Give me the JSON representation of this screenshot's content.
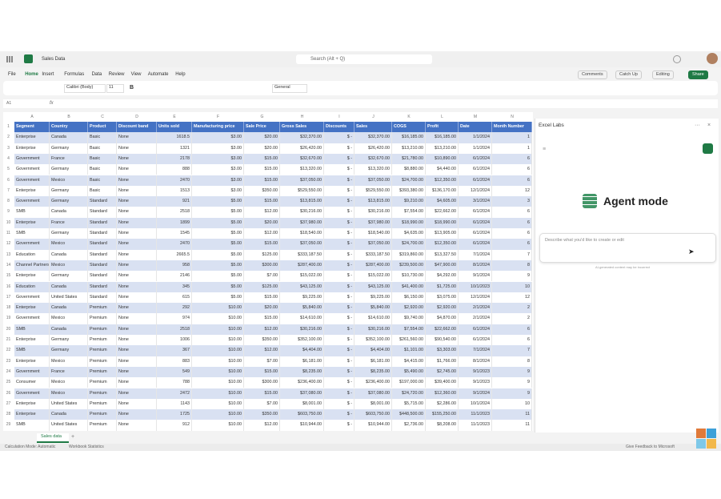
{
  "app": {
    "file_title": "Sales Data",
    "search": "Search (Alt + Q)",
    "menu": [
      "File",
      "Home",
      "Insert",
      "Formulas",
      "Data",
      "Review",
      "View",
      "Automate",
      "Help"
    ],
    "actions": [
      "Comments",
      "Catch Up",
      "Editing",
      "Share"
    ],
    "font_name": "Calibri (Body)",
    "font_size": "11",
    "number_format": "General",
    "name_box": "A1"
  },
  "sheet": {
    "column_letters": [
      "A",
      "B",
      "C",
      "D",
      "E",
      "F",
      "G",
      "H",
      "I",
      "J",
      "K",
      "L",
      "M",
      "N"
    ],
    "row_numbers": [
      1,
      2,
      3,
      4,
      5,
      6,
      7,
      8,
      9,
      10,
      11,
      12,
      13,
      14,
      15,
      16,
      17,
      18,
      19,
      20,
      21,
      22,
      23,
      24,
      25,
      26,
      27,
      28,
      29
    ],
    "headers": [
      "Segment",
      "Country",
      "Product",
      "Discount band",
      "Units sold",
      "Manufacturing price",
      "Sale Price",
      "Gross Sales",
      "Discounts",
      "Sales",
      "COGS",
      "Profit",
      "Date",
      "Month Number"
    ],
    "rows": [
      [
        "Enterprise",
        "Canada",
        "Basic",
        "None",
        "1618.5",
        "$3.00",
        "$20.00",
        "$32,370.00",
        "$ -",
        "$32,370.00",
        "$16,185.00",
        "$16,185.00",
        "1/1/2024",
        "1"
      ],
      [
        "Enterprise",
        "Germany",
        "Basic",
        "None",
        "1321",
        "$3.00",
        "$20.00",
        "$26,420.00",
        "$ -",
        "$26,420.00",
        "$13,210.00",
        "$13,210.00",
        "1/1/2024",
        "1"
      ],
      [
        "Government",
        "France",
        "Basic",
        "None",
        "2178",
        "$3.00",
        "$15.00",
        "$32,670.00",
        "$ -",
        "$32,670.00",
        "$21,780.00",
        "$10,890.00",
        "6/1/2024",
        "6"
      ],
      [
        "Government",
        "Germany",
        "Basic",
        "None",
        "888",
        "$3.00",
        "$15.00",
        "$13,320.00",
        "$ -",
        "$13,320.00",
        "$8,880.00",
        "$4,440.00",
        "6/1/2024",
        "6"
      ],
      [
        "Government",
        "Mexico",
        "Basic",
        "None",
        "2470",
        "$3.00",
        "$15.00",
        "$37,050.00",
        "$ -",
        "$37,050.00",
        "$24,700.00",
        "$12,350.00",
        "6/1/2024",
        "6"
      ],
      [
        "Enterprise",
        "Germany",
        "Basic",
        "None",
        "1513",
        "$3.00",
        "$350.00",
        "$529,550.00",
        "$ -",
        "$529,550.00",
        "$393,380.00",
        "$136,170.00",
        "12/1/2024",
        "12"
      ],
      [
        "Government",
        "Germany",
        "Standard",
        "None",
        "921",
        "$5.00",
        "$15.00",
        "$13,815.00",
        "$ -",
        "$13,815.00",
        "$9,210.00",
        "$4,605.00",
        "3/1/2024",
        "3"
      ],
      [
        "SMB",
        "Canada",
        "Standard",
        "None",
        "2518",
        "$5.00",
        "$12.00",
        "$30,216.00",
        "$ -",
        "$30,216.00",
        "$7,554.00",
        "$22,662.00",
        "6/1/2024",
        "6"
      ],
      [
        "Enterprise",
        "France",
        "Standard",
        "None",
        "1899",
        "$5.00",
        "$20.00",
        "$37,980.00",
        "$ -",
        "$37,980.00",
        "$18,990.00",
        "$18,990.00",
        "6/1/2024",
        "6"
      ],
      [
        "SMB",
        "Germany",
        "Standard",
        "None",
        "1545",
        "$5.00",
        "$12.00",
        "$18,540.00",
        "$ -",
        "$18,540.00",
        "$4,635.00",
        "$13,905.00",
        "6/1/2024",
        "6"
      ],
      [
        "Government",
        "Mexico",
        "Standard",
        "None",
        "2470",
        "$5.00",
        "$15.00",
        "$37,050.00",
        "$ -",
        "$37,050.00",
        "$24,700.00",
        "$12,350.00",
        "6/1/2024",
        "6"
      ],
      [
        "Education",
        "Canada",
        "Standard",
        "None",
        "2665.5",
        "$5.00",
        "$125.00",
        "$333,187.50",
        "$ -",
        "$333,187.50",
        "$319,860.00",
        "$13,327.50",
        "7/1/2024",
        "7"
      ],
      [
        "Channel Partners",
        "Mexico",
        "Standard",
        "None",
        "958",
        "$5.00",
        "$300.00",
        "$287,400.00",
        "$ -",
        "$287,400.00",
        "$239,500.00",
        "$47,900.00",
        "8/1/2024",
        "8"
      ],
      [
        "Enterprise",
        "Germany",
        "Standard",
        "None",
        "2146",
        "$5.00",
        "$7.00",
        "$15,022.00",
        "$ -",
        "$15,022.00",
        "$10,730.00",
        "$4,292.00",
        "9/1/2024",
        "9"
      ],
      [
        "Education",
        "Canada",
        "Standard",
        "None",
        "345",
        "$5.00",
        "$125.00",
        "$43,125.00",
        "$ -",
        "$43,125.00",
        "$41,400.00",
        "$1,725.00",
        "10/1/2023",
        "10"
      ],
      [
        "Government",
        "United States",
        "Standard",
        "None",
        "615",
        "$5.00",
        "$15.00",
        "$9,225.00",
        "$ -",
        "$9,225.00",
        "$6,150.00",
        "$3,075.00",
        "12/1/2024",
        "12"
      ],
      [
        "Enterprise",
        "Canada",
        "Premium",
        "None",
        "292",
        "$10.00",
        "$20.00",
        "$5,840.00",
        "$ -",
        "$5,840.00",
        "$2,920.00",
        "$2,920.00",
        "2/1/2024",
        "2"
      ],
      [
        "Government",
        "Mexico",
        "Premium",
        "None",
        "974",
        "$10.00",
        "$15.00",
        "$14,610.00",
        "$ -",
        "$14,610.00",
        "$9,740.00",
        "$4,870.00",
        "2/1/2024",
        "2"
      ],
      [
        "SMB",
        "Canada",
        "Premium",
        "None",
        "2518",
        "$10.00",
        "$12.00",
        "$30,216.00",
        "$ -",
        "$30,216.00",
        "$7,554.00",
        "$22,662.00",
        "6/1/2024",
        "6"
      ],
      [
        "Enterprise",
        "Germany",
        "Premium",
        "None",
        "1006",
        "$10.00",
        "$350.00",
        "$352,100.00",
        "$ -",
        "$352,100.00",
        "$261,560.00",
        "$90,540.00",
        "6/1/2024",
        "6"
      ],
      [
        "SMB",
        "Germany",
        "Premium",
        "None",
        "367",
        "$10.00",
        "$12.00",
        "$4,404.00",
        "$ -",
        "$4,404.00",
        "$1,101.00",
        "$3,303.00",
        "7/1/2024",
        "7"
      ],
      [
        "Enterprise",
        "Mexico",
        "Premium",
        "None",
        "883",
        "$10.00",
        "$7.00",
        "$6,181.00",
        "$ -",
        "$6,181.00",
        "$4,415.00",
        "$1,766.00",
        "8/1/2024",
        "8"
      ],
      [
        "Government",
        "France",
        "Premium",
        "None",
        "549",
        "$10.00",
        "$15.00",
        "$8,235.00",
        "$ -",
        "$8,235.00",
        "$5,490.00",
        "$2,745.00",
        "9/1/2023",
        "9"
      ],
      [
        "Consumer",
        "Mexico",
        "Premium",
        "None",
        "788",
        "$10.00",
        "$300.00",
        "$236,400.00",
        "$ -",
        "$236,400.00",
        "$197,000.00",
        "$39,400.00",
        "9/1/2023",
        "9"
      ],
      [
        "Government",
        "Mexico",
        "Premium",
        "None",
        "2472",
        "$10.00",
        "$15.00",
        "$37,080.00",
        "$ -",
        "$37,080.00",
        "$24,720.00",
        "$12,360.00",
        "9/1/2024",
        "9"
      ],
      [
        "Enterprise",
        "United States",
        "Premium",
        "None",
        "1143",
        "$10.00",
        "$7.00",
        "$8,001.00",
        "$ -",
        "$8,001.00",
        "$5,715.00",
        "$2,286.00",
        "10/1/2024",
        "10"
      ],
      [
        "Enterprise",
        "Canada",
        "Premium",
        "None",
        "1725",
        "$10.00",
        "$350.00",
        "$603,750.00",
        "$ -",
        "$603,750.00",
        "$448,500.00",
        "$155,250.00",
        "11/1/2023",
        "11"
      ],
      [
        "SMB",
        "United States",
        "Premium",
        "None",
        "912",
        "$10.00",
        "$12.00",
        "$10,944.00",
        "$ -",
        "$10,944.00",
        "$2,736.00",
        "$8,208.00",
        "11/1/2023",
        "11"
      ]
    ],
    "tab": "Sales data"
  },
  "panel": {
    "title": "Excel Labs",
    "heading": "Agent mode",
    "placeholder": "Describe what you'd like to create or edit",
    "disclaimer": "AI-generated content may be incorrect"
  },
  "status": {
    "calc_mode": "Calculation Mode: Automatic",
    "stats": "Workbook Statistics",
    "feedback": "Give Feedback to Microsoft"
  }
}
